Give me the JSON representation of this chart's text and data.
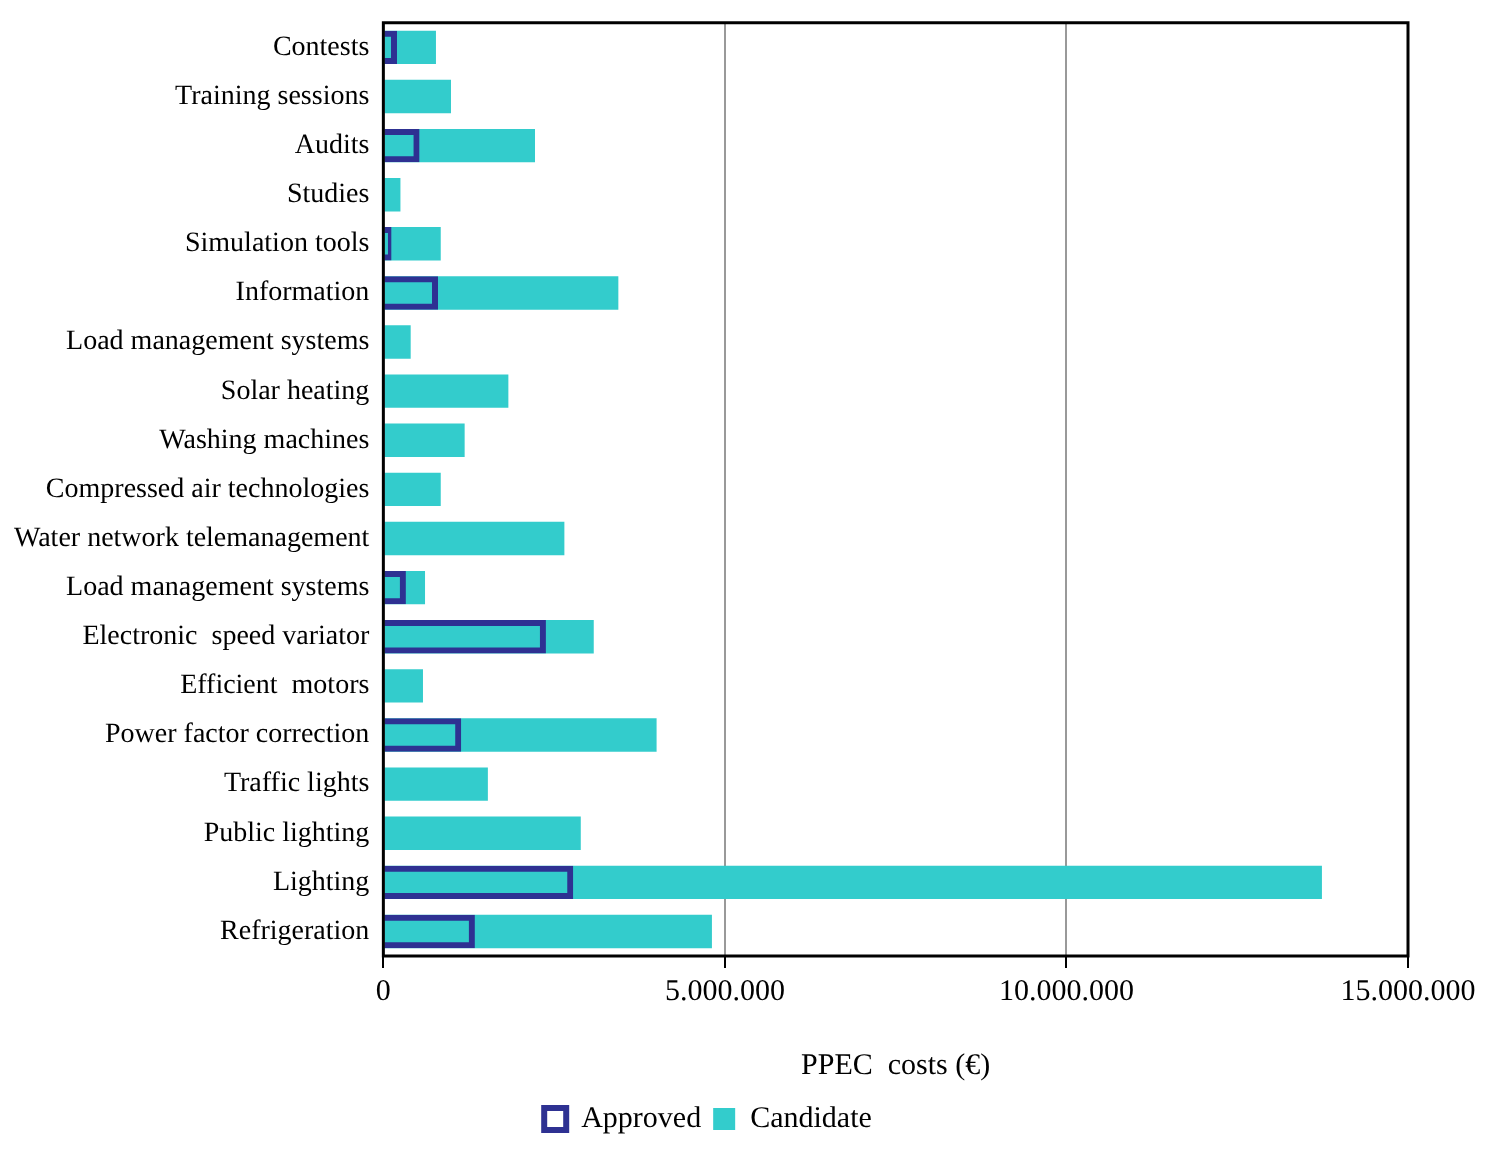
{
  "chart_data": {
    "type": "bar",
    "orientation": "horizontal",
    "xlabel": "PPEC  costs (€)",
    "categories": [
      "Contests",
      "Training sessions",
      "Audits",
      "Studies",
      "Simulation tools",
      "Information",
      "Load management systems",
      "Solar heating",
      "Washing machines",
      "Compressed air technologies",
      "Water network telemanagement",
      "Load management systems",
      "Electronic  speed variator",
      "Efficient  motors",
      "Power factor correction",
      "Traffic lights",
      "Public lighting",
      "Lighting",
      "Refrigeration"
    ],
    "series": [
      {
        "name": "Candidate",
        "color": "#33cccc",
        "values": [
          770000,
          990000,
          2220000,
          250000,
          840000,
          3440000,
          400000,
          1830000,
          1190000,
          840000,
          2650000,
          610000,
          3080000,
          580000,
          4000000,
          1530000,
          2890000,
          13740000,
          4810000
        ]
      },
      {
        "name": "Approved",
        "color": "#2e3192",
        "values": [
          200000,
          null,
          530000,
          null,
          120000,
          800000,
          null,
          null,
          null,
          null,
          null,
          330000,
          2380000,
          null,
          1140000,
          null,
          null,
          2780000,
          1340000
        ]
      }
    ],
    "xlim": [
      0,
      15000000
    ],
    "xticks": [
      0,
      {
        "value": 5000000,
        "label": "5.000.000"
      },
      {
        "value": 10000000,
        "label": "10.000.000"
      },
      {
        "value": 15000000,
        "label": "15.000.000"
      }
    ],
    "grid": "x",
    "legend": "bottom"
  }
}
